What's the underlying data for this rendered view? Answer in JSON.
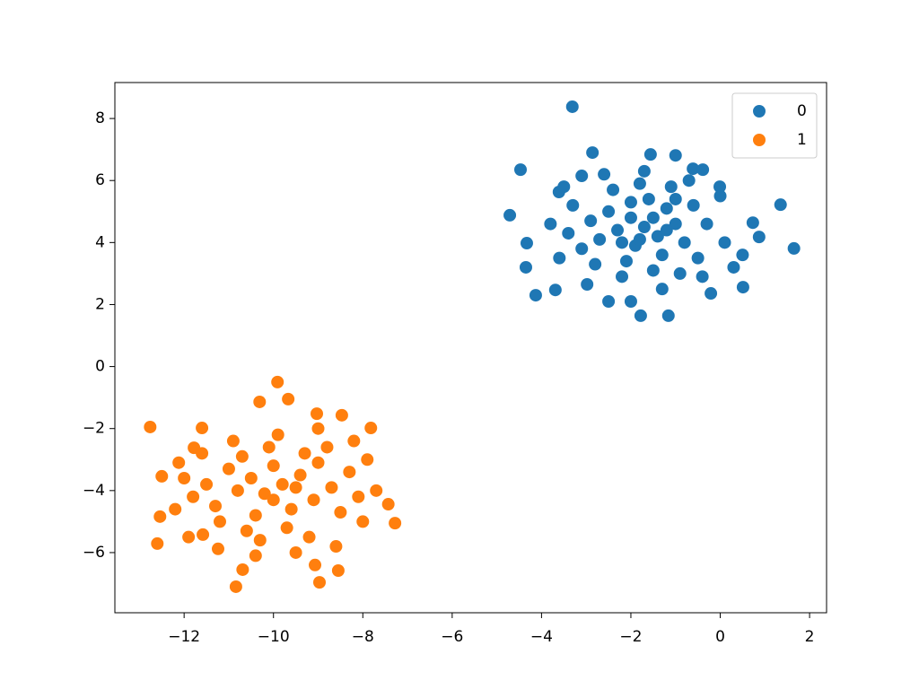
{
  "chart_data": {
    "type": "scatter",
    "xlim": [
      -13.55,
      2.38
    ],
    "ylim": [
      -7.94,
      9.16
    ],
    "xticks": [
      {
        "value": -12,
        "label": "−12"
      },
      {
        "value": -10,
        "label": "−10"
      },
      {
        "value": -8,
        "label": "−8"
      },
      {
        "value": -6,
        "label": "−6"
      },
      {
        "value": -4,
        "label": "−4"
      },
      {
        "value": -2,
        "label": "−2"
      },
      0,
      2
    ],
    "yticks": [
      {
        "value": -6,
        "label": "−6"
      },
      {
        "value": -4,
        "label": "−4"
      },
      {
        "value": -2,
        "label": "−2"
      },
      0,
      2,
      4,
      6,
      8
    ],
    "legend": "upper right",
    "series": [
      {
        "name": "0",
        "color": "#1f77b4",
        "x": [
          -3.31,
          -4.47,
          -4.71,
          -4.33,
          -4.35,
          -4.13,
          -2.86,
          -1.56,
          -1.0,
          1.35,
          1.65,
          0.87,
          0.73,
          0.51,
          -0.21,
          -1.78,
          -1.16,
          -2.5,
          -2.98,
          -3.69,
          -0.01,
          -0.61,
          -0.39,
          -3.61,
          -3.1,
          -1.7,
          -2.0,
          -1.4,
          -1.9,
          -1.2,
          -2.3,
          -1.0,
          -1.6,
          -2.5,
          -1.3,
          -2.1,
          -0.8,
          -0.6,
          -2.7,
          -1.8,
          -1.1,
          -2.4,
          -0.5,
          -2.9,
          -1.5,
          -2.2,
          -0.9,
          -3.1,
          -0.3,
          -3.3,
          -1.7,
          -2.6,
          -0.7,
          -3.4,
          0.1,
          -2.0,
          -1.5,
          -1.2,
          -1.8,
          -2.2,
          -1.0,
          -2.8,
          -0.4,
          -3.6,
          0.3,
          0.5,
          -3.8,
          -3.5,
          0.0,
          -1.3,
          -2.0
        ],
        "values": [
          8.38,
          6.35,
          4.88,
          3.98,
          3.2,
          2.3,
          6.9,
          6.84,
          6.81,
          5.22,
          3.81,
          4.18,
          4.64,
          2.56,
          2.36,
          1.64,
          1.64,
          2.1,
          2.65,
          2.47,
          5.8,
          6.38,
          6.35,
          5.63,
          6.15,
          4.5,
          4.8,
          4.2,
          3.9,
          5.1,
          4.4,
          4.6,
          5.4,
          5.0,
          3.6,
          3.4,
          4.0,
          5.2,
          4.1,
          5.9,
          5.8,
          5.7,
          3.5,
          4.7,
          3.1,
          2.9,
          3.0,
          3.8,
          4.6,
          5.2,
          6.3,
          6.2,
          6.0,
          4.3,
          4.0,
          5.3,
          4.8,
          4.4,
          4.1,
          4.0,
          5.4,
          3.3,
          2.9,
          3.5,
          3.2,
          3.6,
          4.6,
          5.8,
          5.5,
          2.5,
          2.1
        ]
      },
      {
        "name": "1",
        "color": "#ff7f0e",
        "x": [
          -12.76,
          -12.6,
          -12.54,
          -10.84,
          -9.91,
          -10.31,
          -9.67,
          -9.03,
          -8.47,
          -7.82,
          -7.28,
          -7.43,
          -8.97,
          -8.55,
          -10.69,
          -11.24,
          -11.58,
          -11.78,
          -11.6,
          -12.5,
          -12.12,
          -9.07,
          -9.8,
          -10.2,
          -9.4,
          -10.5,
          -9.1,
          -10.0,
          -9.6,
          -10.8,
          -9.0,
          -10.4,
          -9.3,
          -11.0,
          -8.7,
          -10.1,
          -9.7,
          -11.3,
          -8.5,
          -10.7,
          -9.2,
          -11.5,
          -8.3,
          -10.3,
          -9.9,
          -11.2,
          -8.1,
          -10.9,
          -8.8,
          -11.8,
          -8.0,
          -10.6,
          -9.5,
          -12.0,
          -7.9,
          -11.6,
          -8.6,
          -10.4,
          -9.0,
          -12.2,
          -7.7,
          -11.9,
          -8.2,
          -10.0,
          -9.5
        ],
        "values": [
          -1.95,
          -5.71,
          -4.84,
          -7.1,
          -0.5,
          -1.14,
          -1.05,
          -1.52,
          -1.57,
          -1.98,
          -5.05,
          -4.44,
          -6.96,
          -6.58,
          -6.55,
          -5.88,
          -5.42,
          -2.62,
          -1.98,
          -3.54,
          -3.1,
          -6.4,
          -3.8,
          -4.1,
          -3.5,
          -3.6,
          -4.3,
          -3.2,
          -4.6,
          -4.0,
          -3.1,
          -4.8,
          -2.8,
          -3.3,
          -3.9,
          -2.6,
          -5.2,
          -4.5,
          -4.7,
          -2.9,
          -5.5,
          -3.8,
          -3.4,
          -5.6,
          -2.2,
          -5.0,
          -4.2,
          -2.4,
          -2.6,
          -4.2,
          -5.0,
          -5.3,
          -6.0,
          -3.6,
          -3.0,
          -2.8,
          -5.8,
          -6.1,
          -2.0,
          -4.6,
          -4.0,
          -5.5,
          -2.4,
          -4.3,
          -3.9
        ]
      }
    ]
  }
}
